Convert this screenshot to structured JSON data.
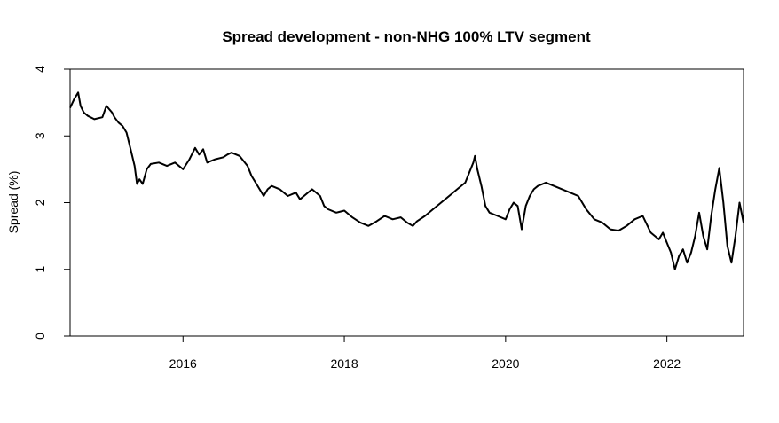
{
  "chart_data": {
    "type": "line",
    "title": "Spread development - non-NHG 100% LTV segment",
    "xlabel": "",
    "ylabel": "Spread (%)",
    "xlim": [
      2014.6,
      2022.95
    ],
    "ylim": [
      0,
      4
    ],
    "x_ticks": [
      2016,
      2018,
      2020,
      2022
    ],
    "x_tick_labels": [
      "2016",
      "2018",
      "2020",
      "2022"
    ],
    "y_ticks": [
      0,
      1,
      2,
      3,
      4
    ],
    "y_tick_labels": [
      "0",
      "1",
      "2",
      "3",
      "4"
    ],
    "line_color": "#000000",
    "series": [
      {
        "name": "Spread",
        "x": [
          2014.6,
          2014.65,
          2014.7,
          2014.73,
          2014.77,
          2014.82,
          2014.9,
          2015.0,
          2015.05,
          2015.12,
          2015.15,
          2015.2,
          2015.25,
          2015.3,
          2015.35,
          2015.4,
          2015.43,
          2015.46,
          2015.5,
          2015.55,
          2015.6,
          2015.7,
          2015.8,
          2015.9,
          2016.0,
          2016.08,
          2016.15,
          2016.2,
          2016.25,
          2016.3,
          2016.4,
          2016.5,
          2016.55,
          2016.6,
          2016.7,
          2016.8,
          2016.85,
          2016.9,
          2017.0,
          2017.05,
          2017.1,
          2017.2,
          2017.3,
          2017.4,
          2017.45,
          2017.5,
          2017.6,
          2017.7,
          2017.75,
          2017.8,
          2017.9,
          2018.0,
          2018.1,
          2018.2,
          2018.3,
          2018.4,
          2018.5,
          2018.6,
          2018.7,
          2018.78,
          2018.85,
          2018.9,
          2019.0,
          2019.1,
          2019.2,
          2019.3,
          2019.4,
          2019.5,
          2019.55,
          2019.6,
          2019.62,
          2019.65,
          2019.7,
          2019.75,
          2019.8,
          2019.9,
          2020.0,
          2020.05,
          2020.1,
          2020.15,
          2020.2,
          2020.25,
          2020.3,
          2020.35,
          2020.4,
          2020.5,
          2020.6,
          2020.7,
          2020.8,
          2020.9,
          2020.95,
          2021.0,
          2021.1,
          2021.2,
          2021.3,
          2021.4,
          2021.5,
          2021.6,
          2021.7,
          2021.8,
          2021.9,
          2021.95,
          2022.0,
          2022.05,
          2022.1,
          2022.15,
          2022.2,
          2022.25,
          2022.3,
          2022.35,
          2022.4,
          2022.45,
          2022.5,
          2022.55,
          2022.6,
          2022.65,
          2022.7,
          2022.75,
          2022.8,
          2022.85,
          2022.9,
          2022.95
        ],
        "y": [
          3.42,
          3.55,
          3.65,
          3.45,
          3.35,
          3.3,
          3.25,
          3.28,
          3.45,
          3.35,
          3.28,
          3.2,
          3.15,
          3.05,
          2.8,
          2.55,
          2.28,
          2.35,
          2.28,
          2.5,
          2.58,
          2.6,
          2.55,
          2.6,
          2.5,
          2.65,
          2.82,
          2.72,
          2.8,
          2.6,
          2.65,
          2.68,
          2.72,
          2.75,
          2.7,
          2.55,
          2.4,
          2.3,
          2.1,
          2.2,
          2.25,
          2.2,
          2.1,
          2.15,
          2.05,
          2.1,
          2.2,
          2.1,
          1.95,
          1.9,
          1.85,
          1.88,
          1.78,
          1.7,
          1.65,
          1.72,
          1.8,
          1.75,
          1.78,
          1.7,
          1.65,
          1.72,
          1.8,
          1.9,
          2.0,
          2.1,
          2.2,
          2.3,
          2.45,
          2.6,
          2.7,
          2.5,
          2.25,
          1.95,
          1.85,
          1.8,
          1.75,
          1.9,
          2.0,
          1.95,
          1.6,
          1.95,
          2.1,
          2.2,
          2.25,
          2.3,
          2.25,
          2.2,
          2.15,
          2.1,
          2.0,
          1.9,
          1.75,
          1.7,
          1.6,
          1.58,
          1.65,
          1.75,
          1.8,
          1.55,
          1.45,
          1.55,
          1.4,
          1.25,
          1.0,
          1.2,
          1.3,
          1.1,
          1.25,
          1.5,
          1.85,
          1.5,
          1.3,
          1.8,
          2.2,
          2.52,
          2.0,
          1.35,
          1.1,
          1.5,
          2.0,
          1.7
        ]
      }
    ]
  }
}
